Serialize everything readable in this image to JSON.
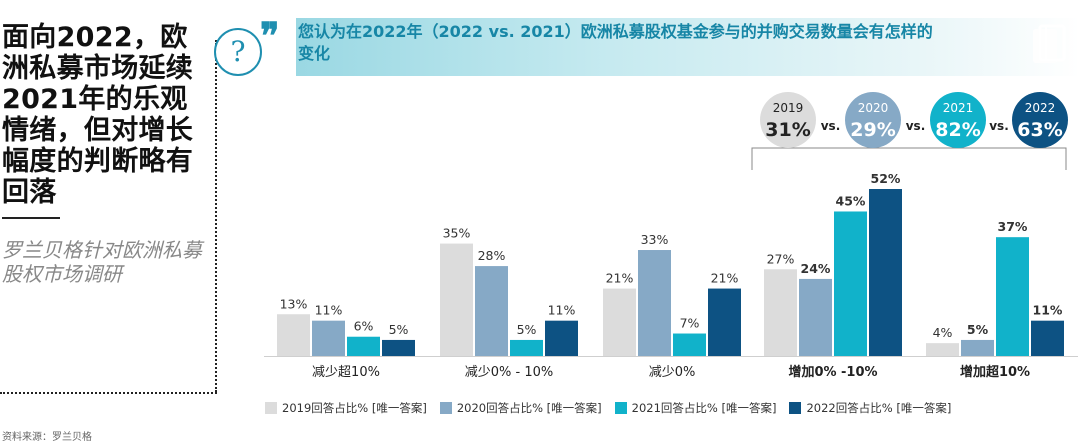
{
  "headline": "面向2022，欧洲私募市场延续2021年的乐观情绪，但对增长幅度的判断略有回落",
  "subtitle": "罗兰贝格针对欧洲私募股权市场调研",
  "source": "资料来源：罗兰贝格",
  "question": "您认为在2022年（2022 vs. 2021）欧洲私募股权基金参与的并购交易数量会有怎样的变化",
  "colors": {
    "2019": "#dcdcdc",
    "2020": "#86a9c6",
    "2021": "#11b2ca",
    "2022": "#0d5283",
    "accent": "#1786a6"
  },
  "comparison": {
    "vs_label": "vs.",
    "items": [
      {
        "year": "2019",
        "value": "31%"
      },
      {
        "year": "2020",
        "value": "29%"
      },
      {
        "year": "2021",
        "value": "82%"
      },
      {
        "year": "2022",
        "value": "63%"
      }
    ]
  },
  "chart_data": {
    "type": "bar",
    "categories": [
      "减少超10%",
      "减少0% - 10%",
      "减少0%",
      "增加0% -10%",
      "增加超10%"
    ],
    "bold_categories": [
      "增加0% -10%",
      "增加超10%"
    ],
    "series": [
      {
        "name": "2019回答占比% [唯一答案]",
        "color": "#dcdcdc",
        "values": [
          13,
          35,
          21,
          27,
          4
        ]
      },
      {
        "name": "2020回答占比% [唯一答案]",
        "color": "#86a9c6",
        "values": [
          11,
          28,
          33,
          24,
          5
        ]
      },
      {
        "name": "2021回答占比% [唯一答案]",
        "color": "#11b2ca",
        "values": [
          6,
          5,
          7,
          45,
          37
        ]
      },
      {
        "name": "2022回答占比% [唯一答案]",
        "color": "#0d5283",
        "values": [
          5,
          11,
          21,
          52,
          11
        ]
      }
    ],
    "ylim": [
      0,
      52
    ],
    "legend": "bottom",
    "grid": false
  }
}
